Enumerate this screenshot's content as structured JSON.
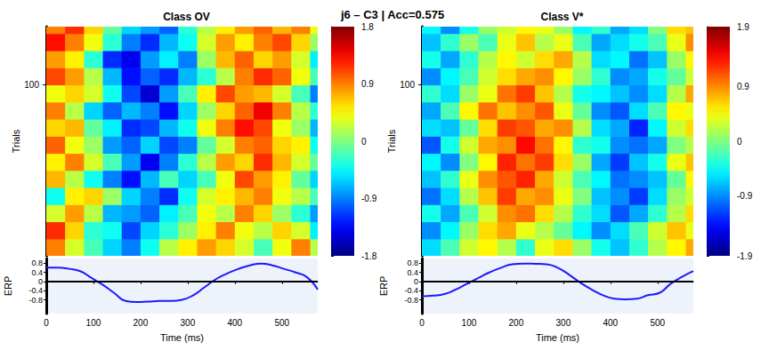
{
  "title": "j6 – C3 | Acc=0.575",
  "chart_data": [
    {
      "type": "heatmap",
      "title": "Class OV",
      "ylabel": "Trials",
      "x_edges": [
        0,
        40,
        80,
        120,
        160,
        200,
        240,
        280,
        320,
        360,
        400,
        440,
        480,
        520,
        560,
        576
      ],
      "y_edges": [
        0,
        10,
        20,
        30,
        40,
        50,
        60,
        70,
        80,
        90,
        100,
        110,
        120,
        130,
        134
      ],
      "cells": [
        [
          0.9,
          0.3,
          -0.2,
          -0.6,
          -0.9,
          -0.4,
          0.2,
          0.5,
          0.8,
          0.6,
          0.3,
          -0.2,
          0.4,
          0.9,
          0.2
        ],
        [
          1.2,
          0.6,
          -0.3,
          -0.4,
          -1.1,
          -0.6,
          -0.3,
          0.1,
          0.5,
          0.9,
          0.4,
          0.2,
          0.6,
          0.3,
          -0.5
        ],
        [
          0.3,
          0.8,
          0.2,
          -0.7,
          -0.8,
          -1.0,
          -0.5,
          -0.2,
          0.4,
          0.2,
          0.9,
          0.6,
          0.1,
          -0.3,
          -0.8
        ],
        [
          -0.4,
          0.5,
          0.6,
          0.1,
          -0.6,
          -0.9,
          -1.2,
          -0.4,
          0.3,
          0.5,
          0.7,
          0.9,
          0.4,
          0.2,
          -0.2
        ],
        [
          0.7,
          0.2,
          -0.4,
          -0.9,
          -1.3,
          -0.7,
          -0.2,
          -0.6,
          -0.2,
          0.4,
          1.1,
          0.8,
          0.5,
          -0.1,
          -0.6
        ],
        [
          0.5,
          0.9,
          0.3,
          -0.2,
          -0.8,
          -1.4,
          -0.9,
          -0.3,
          0.2,
          0.8,
          0.6,
          1.2,
          0.7,
          0.3,
          -0.1
        ],
        [
          1.0,
          0.4,
          0.1,
          -0.8,
          -1.0,
          -0.6,
          -1.1,
          -0.9,
          -0.1,
          0.3,
          0.9,
          1.0,
          0.6,
          0.5,
          -0.4
        ],
        [
          0.6,
          0.7,
          -0.1,
          -0.5,
          -1.2,
          -1.1,
          -0.7,
          -0.4,
          0.4,
          0.9,
          1.3,
          1.1,
          0.4,
          0.1,
          -0.7
        ],
        [
          0.9,
          0.2,
          -0.6,
          -1.0,
          -0.7,
          -0.9,
          -1.3,
          -0.6,
          0.1,
          0.6,
          1.0,
          1.4,
          0.9,
          0.2,
          -0.3
        ],
        [
          0.4,
          0.6,
          0.3,
          -0.4,
          -1.1,
          -1.5,
          -0.8,
          -0.2,
          0.5,
          1.1,
          0.8,
          0.7,
          0.3,
          -0.2,
          -0.9
        ],
        [
          1.1,
          0.8,
          0.2,
          -0.7,
          -1.3,
          -1.0,
          -1.2,
          -0.7,
          -0.3,
          0.2,
          0.9,
          1.2,
          1.0,
          0.4,
          -0.2
        ],
        [
          0.8,
          0.5,
          -0.3,
          -1.2,
          -1.4,
          -0.8,
          -0.5,
          -0.9,
          0.1,
          0.7,
          1.0,
          0.6,
          0.8,
          0.3,
          -0.5
        ],
        [
          1.3,
          0.9,
          0.4,
          -0.3,
          -0.9,
          -1.2,
          -0.7,
          -0.4,
          0.3,
          0.8,
          0.5,
          0.9,
          1.1,
          0.6,
          0.1
        ],
        [
          0.9,
          1.2,
          0.6,
          -0.1,
          -0.6,
          -0.8,
          -1.0,
          -0.3,
          0.2,
          0.5,
          0.8,
          1.0,
          0.7,
          0.9,
          0.4
        ]
      ],
      "xlim": [
        0,
        576
      ],
      "ylim": [
        0,
        134
      ],
      "yticks": [
        100
      ],
      "tick_labels": "y",
      "colorbar": {
        "range": [
          -1.8,
          1.8
        ],
        "ticks": [
          -1.8,
          -0.9,
          0,
          0.9,
          1.8
        ]
      }
    },
    {
      "type": "line",
      "xlabel": "Time (ms)",
      "ylabel": "ERP",
      "color": "#1a1aff",
      "x": [
        0,
        24,
        48,
        72,
        96,
        120,
        144,
        168,
        192,
        216,
        240,
        264,
        288,
        312,
        336,
        360,
        384,
        408,
        432,
        456,
        480,
        504,
        528,
        552,
        576
      ],
      "values": [
        0.6,
        0.6,
        0.55,
        0.45,
        0.15,
        -0.15,
        -0.5,
        -0.85,
        -0.9,
        -0.88,
        -0.85,
        -0.85,
        -0.8,
        -0.6,
        -0.25,
        0.1,
        0.35,
        0.55,
        0.7,
        0.78,
        0.7,
        0.55,
        0.4,
        0.2,
        -0.35
      ],
      "xlim": [
        0,
        576
      ],
      "ylim": [
        -1.4,
        1.0
      ],
      "xticks": [
        0,
        100,
        200,
        300,
        400,
        500
      ],
      "yticks": [
        -0.8,
        -0.4,
        0,
        0.4,
        0.8
      ],
      "hline": 0
    },
    {
      "type": "heatmap",
      "title": "Class V*",
      "ylabel": "Trials",
      "x_edges": [
        0,
        40,
        80,
        120,
        160,
        200,
        240,
        280,
        320,
        360,
        400,
        440,
        480,
        520,
        560,
        576
      ],
      "y_edges": [
        0,
        10,
        20,
        30,
        40,
        50,
        60,
        70,
        80,
        90,
        100,
        110,
        120,
        130,
        134
      ],
      "cells": [
        [
          -0.6,
          -0.2,
          0.3,
          0.5,
          0.2,
          -0.3,
          0.4,
          0.6,
          0.1,
          -0.4,
          -0.7,
          -0.3,
          0.2,
          0.5,
          0.8
        ],
        [
          -0.9,
          -0.5,
          0.1,
          0.6,
          0.8,
          0.4,
          0.2,
          -0.1,
          -0.5,
          -0.9,
          -0.6,
          -0.2,
          0.3,
          0.7,
          0.4
        ],
        [
          -0.4,
          -0.8,
          -0.2,
          0.3,
          0.9,
          1.0,
          0.6,
          0.2,
          -0.3,
          -0.6,
          -1.1,
          -0.8,
          -0.3,
          0.2,
          0.6
        ],
        [
          -1.0,
          -0.6,
          0.2,
          0.7,
          1.2,
          0.8,
          0.9,
          0.4,
          0.0,
          -0.7,
          -0.9,
          -1.2,
          -0.6,
          0.1,
          0.3
        ],
        [
          -0.7,
          -0.3,
          0.4,
          0.9,
          1.1,
          1.3,
          0.8,
          0.3,
          -0.2,
          -0.5,
          -1.0,
          -0.9,
          -0.7,
          -0.1,
          0.5
        ],
        [
          -0.5,
          -0.9,
          0.0,
          0.5,
          1.3,
          1.0,
          1.2,
          0.6,
          0.1,
          -0.8,
          -1.2,
          -0.7,
          -0.4,
          0.4,
          0.7
        ],
        [
          -1.1,
          -0.4,
          0.3,
          0.8,
          0.9,
          1.4,
          1.0,
          0.5,
          -0.3,
          -0.4,
          -0.9,
          -1.0,
          -0.8,
          0.0,
          0.2
        ],
        [
          -0.6,
          -0.7,
          -0.1,
          0.6,
          1.2,
          1.1,
          0.8,
          0.9,
          0.2,
          -0.6,
          -0.8,
          -1.3,
          -0.5,
          0.3,
          0.6
        ],
        [
          -0.8,
          -0.2,
          0.5,
          1.0,
          0.7,
          0.9,
          1.1,
          0.4,
          -0.1,
          -0.9,
          -1.1,
          -0.6,
          -0.2,
          0.5,
          0.4
        ],
        [
          -0.3,
          -0.6,
          0.1,
          0.4,
          1.0,
          1.2,
          0.7,
          0.2,
          -0.4,
          -0.5,
          -0.7,
          -0.9,
          -0.6,
          0.2,
          0.8
        ],
        [
          -0.9,
          -0.5,
          -0.2,
          0.3,
          0.6,
          0.8,
          0.9,
          0.5,
          0.1,
          -0.3,
          -0.9,
          -0.8,
          -0.4,
          -0.1,
          0.3
        ],
        [
          -0.4,
          -0.8,
          -0.3,
          0.2,
          0.5,
          0.3,
          0.6,
          0.8,
          0.2,
          -0.6,
          -0.5,
          -1.0,
          -0.7,
          0.1,
          0.5
        ],
        [
          -0.7,
          -0.3,
          0.1,
          -0.2,
          0.4,
          0.7,
          0.2,
          0.4,
          -0.2,
          -0.8,
          -0.6,
          -0.4,
          -0.2,
          0.4,
          0.9
        ],
        [
          -0.5,
          -0.9,
          -0.4,
          0.1,
          0.3,
          0.5,
          0.4,
          0.1,
          -0.5,
          -0.3,
          -0.8,
          -0.6,
          0.0,
          0.6,
          0.7
        ]
      ],
      "xlim": [
        0,
        576
      ],
      "ylim": [
        0,
        134
      ],
      "yticks": [
        100
      ],
      "tick_labels": "y",
      "colorbar": {
        "range": [
          -1.9,
          1.9
        ],
        "ticks": [
          -1.9,
          -0.9,
          0,
          0.9,
          1.9
        ]
      }
    },
    {
      "type": "line",
      "xlabel": "Time (ms)",
      "ylabel": "ERP",
      "color": "#1a1aff",
      "x": [
        0,
        24,
        48,
        72,
        96,
        120,
        144,
        168,
        192,
        216,
        240,
        264,
        288,
        312,
        336,
        360,
        384,
        408,
        432,
        456,
        480,
        504,
        528,
        552,
        576
      ],
      "values": [
        -0.65,
        -0.62,
        -0.55,
        -0.35,
        -0.1,
        0.15,
        0.4,
        0.6,
        0.75,
        0.78,
        0.77,
        0.75,
        0.6,
        0.3,
        -0.05,
        -0.35,
        -0.6,
        -0.75,
        -0.78,
        -0.75,
        -0.6,
        -0.5,
        -0.1,
        0.2,
        0.45
      ],
      "xlim": [
        0,
        576
      ],
      "ylim": [
        -1.4,
        1.0
      ],
      "xticks": [
        0,
        100,
        200,
        300,
        400,
        500
      ],
      "yticks": [
        -0.8,
        -0.4,
        0,
        0.4,
        0.8
      ],
      "hline": 0
    }
  ]
}
